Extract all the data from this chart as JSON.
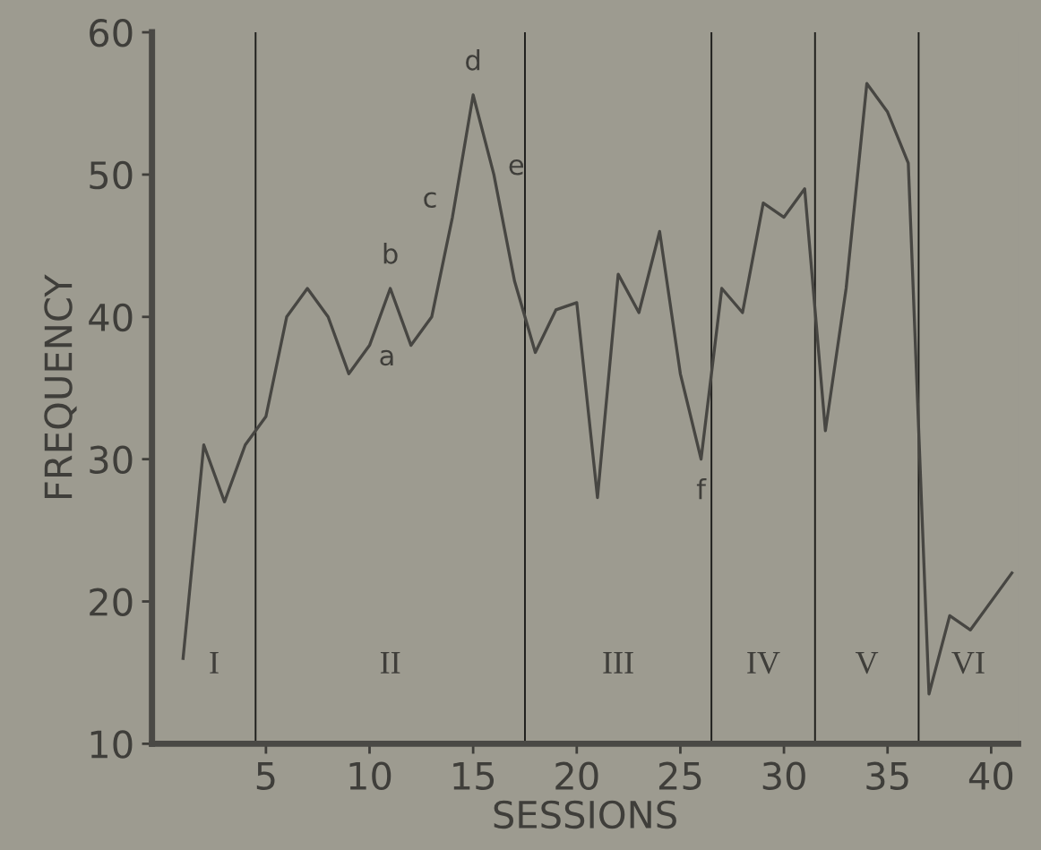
{
  "chart_data": {
    "type": "line",
    "xlabel": "SESSIONS",
    "ylabel": "FREQUENCY",
    "x": [
      1,
      2,
      3,
      4,
      5,
      6,
      7,
      8,
      9,
      10,
      11,
      12,
      13,
      14,
      15,
      16,
      17,
      18,
      19,
      20,
      21,
      22,
      23,
      24,
      25,
      26,
      27,
      28,
      29,
      30,
      31,
      32,
      33,
      34,
      35,
      36,
      37,
      38,
      39,
      41
    ],
    "series": [
      {
        "color": "#474642",
        "values": [
          16,
          31,
          27,
          31,
          33,
          40,
          42,
          40,
          36,
          38,
          42,
          38,
          40,
          47,
          55.6,
          50,
          42.5,
          37.5,
          40.5,
          41,
          27.3,
          43,
          40.3,
          46,
          36,
          30,
          42,
          40.3,
          48,
          47,
          49,
          32,
          42,
          56.4,
          54.4,
          50.8,
          13.5,
          19,
          18,
          22
        ]
      }
    ],
    "xlim": [
      -0.5,
      41.3
    ],
    "ylim": [
      10,
      60
    ],
    "xticks": [
      5,
      10,
      15,
      20,
      25,
      30,
      35,
      40
    ],
    "yticks": [
      10,
      20,
      30,
      40,
      50,
      60
    ],
    "grid": false,
    "legend": false,
    "marker": "none",
    "line_style": "solid",
    "ref_lines": [
      {
        "axis": "x",
        "value": 4.5,
        "color": "#1e1e1c"
      },
      {
        "axis": "x",
        "value": 17.5,
        "color": "#1e1e1c"
      },
      {
        "axis": "x",
        "value": 26.5,
        "color": "#1e1e1c"
      },
      {
        "axis": "x",
        "value": 31.5,
        "color": "#1e1e1c"
      },
      {
        "axis": "x",
        "value": 36.5,
        "color": "#1e1e1c"
      }
    ],
    "annotations": [
      "I",
      "II",
      "III",
      "IV",
      "V",
      "VI",
      {
        "text": "a",
        "x": 10,
        "y": 38
      },
      {
        "text": "b",
        "x": 11,
        "y": 42
      },
      {
        "text": "c",
        "x": 14,
        "y": 47
      },
      {
        "text": "d",
        "x": 15,
        "y": 55.6
      },
      {
        "text": "e",
        "x": 16,
        "y": 50
      },
      {
        "text": "f",
        "x": 26,
        "y": 30
      }
    ]
  }
}
